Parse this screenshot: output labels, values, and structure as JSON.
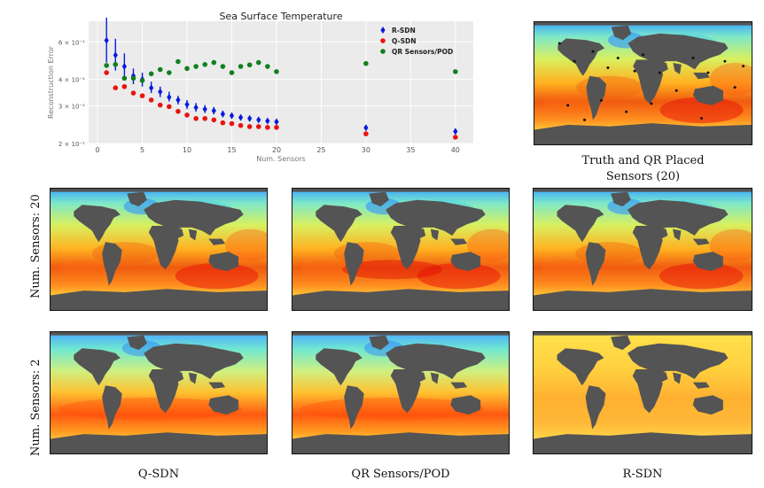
{
  "chart_data": {
    "type": "scatter",
    "title": "Sea Surface Temperature",
    "xlabel": "Num. Sensors",
    "ylabel": "Reconstruction Error",
    "xlim": [
      -1,
      42
    ],
    "ylim": [
      0.2,
      0.75
    ],
    "yscale": "log",
    "xticks": [
      0,
      5,
      10,
      15,
      20,
      25,
      30,
      35,
      40
    ],
    "yticks": [
      {
        "value": 0.2,
        "label": "2 × 10⁻¹"
      },
      {
        "value": 0.3,
        "label": "3 × 10⁻¹"
      },
      {
        "value": 0.4,
        "label": "4 × 10⁻¹"
      },
      {
        "value": 0.6,
        "label": "6 × 10⁻¹"
      }
    ],
    "grid": true,
    "legend_position": "top-right",
    "series": [
      {
        "name": "R-SDN",
        "color": "#0a1adc",
        "marker": "diamond",
        "error_bars": true,
        "points": [
          {
            "x": 1,
            "y": 0.61,
            "lo": 0.48,
            "hi": 0.78
          },
          {
            "x": 2,
            "y": 0.52,
            "lo": 0.44,
            "hi": 0.62
          },
          {
            "x": 3,
            "y": 0.46,
            "lo": 0.41,
            "hi": 0.53
          },
          {
            "x": 4,
            "y": 0.415,
            "lo": 0.38,
            "hi": 0.45
          },
          {
            "x": 5,
            "y": 0.4,
            "lo": 0.37,
            "hi": 0.43
          },
          {
            "x": 6,
            "y": 0.365,
            "lo": 0.345,
            "hi": 0.39
          },
          {
            "x": 7,
            "y": 0.35,
            "lo": 0.33,
            "hi": 0.37
          },
          {
            "x": 8,
            "y": 0.33,
            "lo": 0.315,
            "hi": 0.35
          },
          {
            "x": 9,
            "y": 0.32,
            "lo": 0.305,
            "hi": 0.335
          },
          {
            "x": 10,
            "y": 0.305,
            "lo": 0.29,
            "hi": 0.32
          },
          {
            "x": 11,
            "y": 0.295,
            "lo": 0.282,
            "hi": 0.31
          },
          {
            "x": 12,
            "y": 0.29,
            "lo": 0.278,
            "hi": 0.303
          },
          {
            "x": 13,
            "y": 0.285,
            "lo": 0.274,
            "hi": 0.297
          },
          {
            "x": 14,
            "y": 0.275,
            "lo": 0.266,
            "hi": 0.285
          },
          {
            "x": 15,
            "y": 0.27,
            "lo": 0.262,
            "hi": 0.278
          },
          {
            "x": 16,
            "y": 0.265,
            "lo": 0.258,
            "hi": 0.272
          },
          {
            "x": 17,
            "y": 0.262,
            "lo": 0.255,
            "hi": 0.269
          },
          {
            "x": 18,
            "y": 0.258,
            "lo": 0.252,
            "hi": 0.265
          },
          {
            "x": 19,
            "y": 0.255,
            "lo": 0.249,
            "hi": 0.261
          },
          {
            "x": 20,
            "y": 0.253,
            "lo": 0.247,
            "hi": 0.259
          },
          {
            "x": 30,
            "y": 0.237,
            "lo": 0.232,
            "hi": 0.242
          },
          {
            "x": 40,
            "y": 0.228,
            "lo": 0.224,
            "hi": 0.232
          }
        ]
      },
      {
        "name": "Q-SDN",
        "color": "#e8130f",
        "marker": "circle",
        "points": [
          {
            "x": 1,
            "y": 0.43
          },
          {
            "x": 2,
            "y": 0.365
          },
          {
            "x": 3,
            "y": 0.37
          },
          {
            "x": 4,
            "y": 0.345
          },
          {
            "x": 5,
            "y": 0.335
          },
          {
            "x": 6,
            "y": 0.32
          },
          {
            "x": 7,
            "y": 0.303
          },
          {
            "x": 8,
            "y": 0.298
          },
          {
            "x": 9,
            "y": 0.283
          },
          {
            "x": 10,
            "y": 0.272
          },
          {
            "x": 11,
            "y": 0.262
          },
          {
            "x": 12,
            "y": 0.262
          },
          {
            "x": 13,
            "y": 0.258
          },
          {
            "x": 14,
            "y": 0.25
          },
          {
            "x": 15,
            "y": 0.248
          },
          {
            "x": 16,
            "y": 0.243
          },
          {
            "x": 17,
            "y": 0.24
          },
          {
            "x": 18,
            "y": 0.24
          },
          {
            "x": 19,
            "y": 0.238
          },
          {
            "x": 20,
            "y": 0.238
          },
          {
            "x": 30,
            "y": 0.222
          },
          {
            "x": 40,
            "y": 0.214
          }
        ]
      },
      {
        "name": "QR Sensors/POD",
        "color": "#11801f",
        "marker": "circle",
        "points": [
          {
            "x": 1,
            "y": 0.465
          },
          {
            "x": 2,
            "y": 0.47
          },
          {
            "x": 3,
            "y": 0.405
          },
          {
            "x": 4,
            "y": 0.405
          },
          {
            "x": 5,
            "y": 0.395
          },
          {
            "x": 6,
            "y": 0.425
          },
          {
            "x": 7,
            "y": 0.445
          },
          {
            "x": 8,
            "y": 0.43
          },
          {
            "x": 9,
            "y": 0.485
          },
          {
            "x": 10,
            "y": 0.45
          },
          {
            "x": 11,
            "y": 0.46
          },
          {
            "x": 12,
            "y": 0.47
          },
          {
            "x": 13,
            "y": 0.48
          },
          {
            "x": 14,
            "y": 0.46
          },
          {
            "x": 15,
            "y": 0.43
          },
          {
            "x": 16,
            "y": 0.46
          },
          {
            "x": 17,
            "y": 0.468
          },
          {
            "x": 18,
            "y": 0.48
          },
          {
            "x": 19,
            "y": 0.46
          },
          {
            "x": 20,
            "y": 0.435
          },
          {
            "x": 30,
            "y": 0.475
          },
          {
            "x": 40,
            "y": 0.435
          }
        ]
      }
    ]
  },
  "maps": {
    "truth_caption": "Truth and QR Placed\nSensors (20)",
    "row_labels": [
      "Num. Sensors: 20",
      "Num. Sensors: 2"
    ],
    "column_labels": [
      "Q-SDN",
      "QR Sensors/POD",
      "R-SDN"
    ]
  },
  "colors": {
    "land": "#545454",
    "sensor_marker": "#111111"
  }
}
